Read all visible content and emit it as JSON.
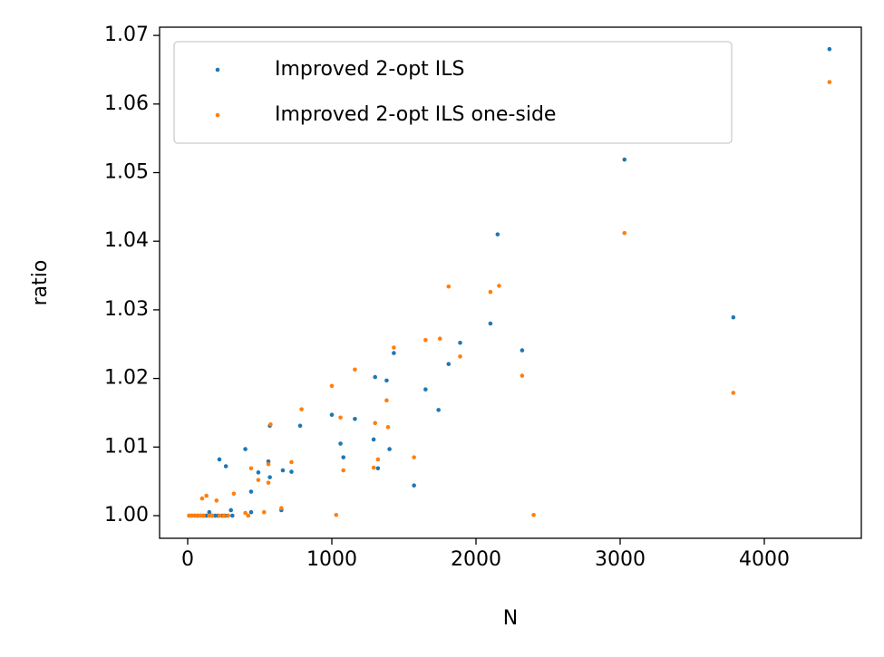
{
  "chart_data": {
    "type": "scatter",
    "x_label": "N",
    "y_label": "ratio",
    "xlim": [
      -195,
      4673
    ],
    "ylim": [
      0.9967,
      1.0712
    ],
    "xticks": [
      0,
      1000,
      2000,
      3000,
      4000
    ],
    "yticks": [
      {
        "value": 1,
        "label": "1.00"
      },
      1.01,
      1.02,
      1.03,
      1.04,
      1.05,
      1.06,
      1.07
    ],
    "legend": "upper left",
    "series": [
      {
        "name": "Improved 2-opt ILS",
        "color": "#1f77b4",
        "x": [
          4452,
          3030,
          3785,
          2150,
          2100,
          2320,
          1890,
          1810,
          1740,
          1650,
          1570,
          1430,
          1380,
          1400,
          1300,
          1290,
          1320,
          1160,
          1080,
          1060,
          1000,
          780,
          720,
          660,
          650,
          570,
          560,
          570,
          490,
          400,
          440,
          440,
          220,
          265,
          300,
          150,
          10,
          30,
          50,
          70,
          90,
          110,
          130,
          170,
          190,
          210,
          240,
          260,
          280,
          310
        ],
        "values": [
          1.068,
          1.0519,
          1.0289,
          1.041,
          1.028,
          1.0241,
          1.0252,
          1.0221,
          1.0154,
          1.0184,
          1.0044,
          1.0237,
          1.0197,
          1.0097,
          1.0202,
          1.0111,
          1.0069,
          1.0141,
          1.0085,
          1.0105,
          1.0147,
          1.0131,
          1.0064,
          1.0066,
          1.0008,
          1.0131,
          1.0079,
          1.0056,
          1.0063,
          1.0097,
          1.0035,
          1.0005,
          1.0082,
          1.0072,
          1.0008,
          1.0005,
          1.0,
          1.0,
          1.0,
          1.0,
          1.0,
          1.0,
          1.0,
          1.0,
          1.0,
          1.0,
          1.0,
          1.0,
          1.0,
          1.0
        ]
      },
      {
        "name": "Improved 2-opt ILS one-side",
        "color": "#ff7f0e",
        "x": [
          4452,
          3030,
          3785,
          2160,
          2100,
          2320,
          1890,
          1810,
          1750,
          1650,
          1570,
          1430,
          1380,
          1390,
          1300,
          1320,
          1290,
          1160,
          1080,
          1060,
          1000,
          1030,
          790,
          720,
          650,
          575,
          560,
          560,
          490,
          530,
          440,
          400,
          320,
          200,
          130,
          100,
          2400,
          10,
          30,
          50,
          70,
          90,
          110,
          150,
          170,
          220,
          250,
          280,
          420
        ],
        "values": [
          1.0632,
          1.0412,
          1.0179,
          1.0335,
          1.0326,
          1.0204,
          1.0232,
          1.0334,
          1.0258,
          1.0256,
          1.0085,
          1.0245,
          1.0168,
          1.0129,
          1.0135,
          1.0082,
          1.007,
          1.0213,
          1.0066,
          1.0143,
          1.0189,
          1.0001,
          1.0155,
          1.0078,
          1.0011,
          1.0133,
          1.0048,
          1.0075,
          1.0052,
          1.0005,
          1.0069,
          1.0004,
          1.0032,
          1.0022,
          1.0029,
          1.0025,
          1.0001,
          1.0,
          1.0,
          1.0,
          1.0,
          1.0,
          1.0,
          1.0,
          1.0,
          1.0,
          1.0,
          1.0,
          1.0
        ]
      }
    ]
  }
}
